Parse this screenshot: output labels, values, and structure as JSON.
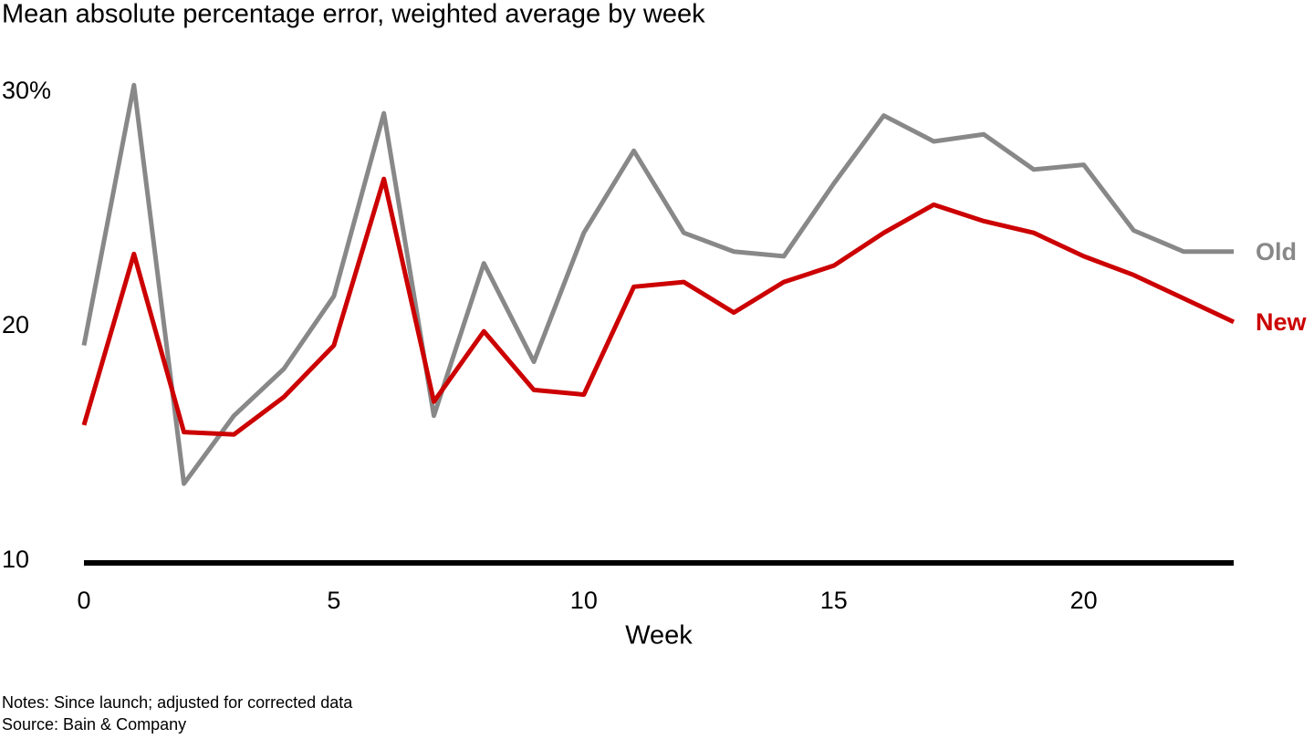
{
  "chart_data": {
    "type": "line",
    "title": "Mean absolute percentage error, weighted average by week",
    "x_label": "Week",
    "x": [
      0,
      1,
      2,
      3,
      4,
      5,
      6,
      7,
      8,
      9,
      10,
      11,
      12,
      13,
      14,
      15,
      16,
      17,
      18,
      19,
      20,
      21,
      22,
      23
    ],
    "series": [
      {
        "name": "Old",
        "color": "#888888",
        "values": [
          19.2,
          30.3,
          13.3,
          16.2,
          18.2,
          21.3,
          29.1,
          16.2,
          22.7,
          18.5,
          24.0,
          27.5,
          24.0,
          23.2,
          23.0,
          26.1,
          29.0,
          27.9,
          28.2,
          26.7,
          26.9,
          24.1,
          23.2,
          23.2
        ]
      },
      {
        "name": "New",
        "color": "#cc0000",
        "values": [
          15.8,
          23.1,
          15.5,
          15.4,
          17.0,
          19.2,
          26.3,
          16.8,
          19.8,
          17.3,
          17.1,
          21.7,
          21.9,
          20.6,
          21.9,
          22.6,
          24.0,
          25.2,
          24.5,
          24.0,
          23.0,
          22.2,
          21.2,
          20.2
        ]
      }
    ],
    "xlim": [
      0,
      23
    ],
    "xticks": [
      0,
      5,
      10,
      15,
      20
    ],
    "ylim": [
      10,
      32
    ],
    "yticks": [
      10,
      20,
      {
        "value": 30,
        "label": "30%"
      }
    ],
    "grid": false,
    "notes": [
      "Notes: Since launch; adjusted for corrected data",
      "Source: Bain & Company"
    ]
  }
}
